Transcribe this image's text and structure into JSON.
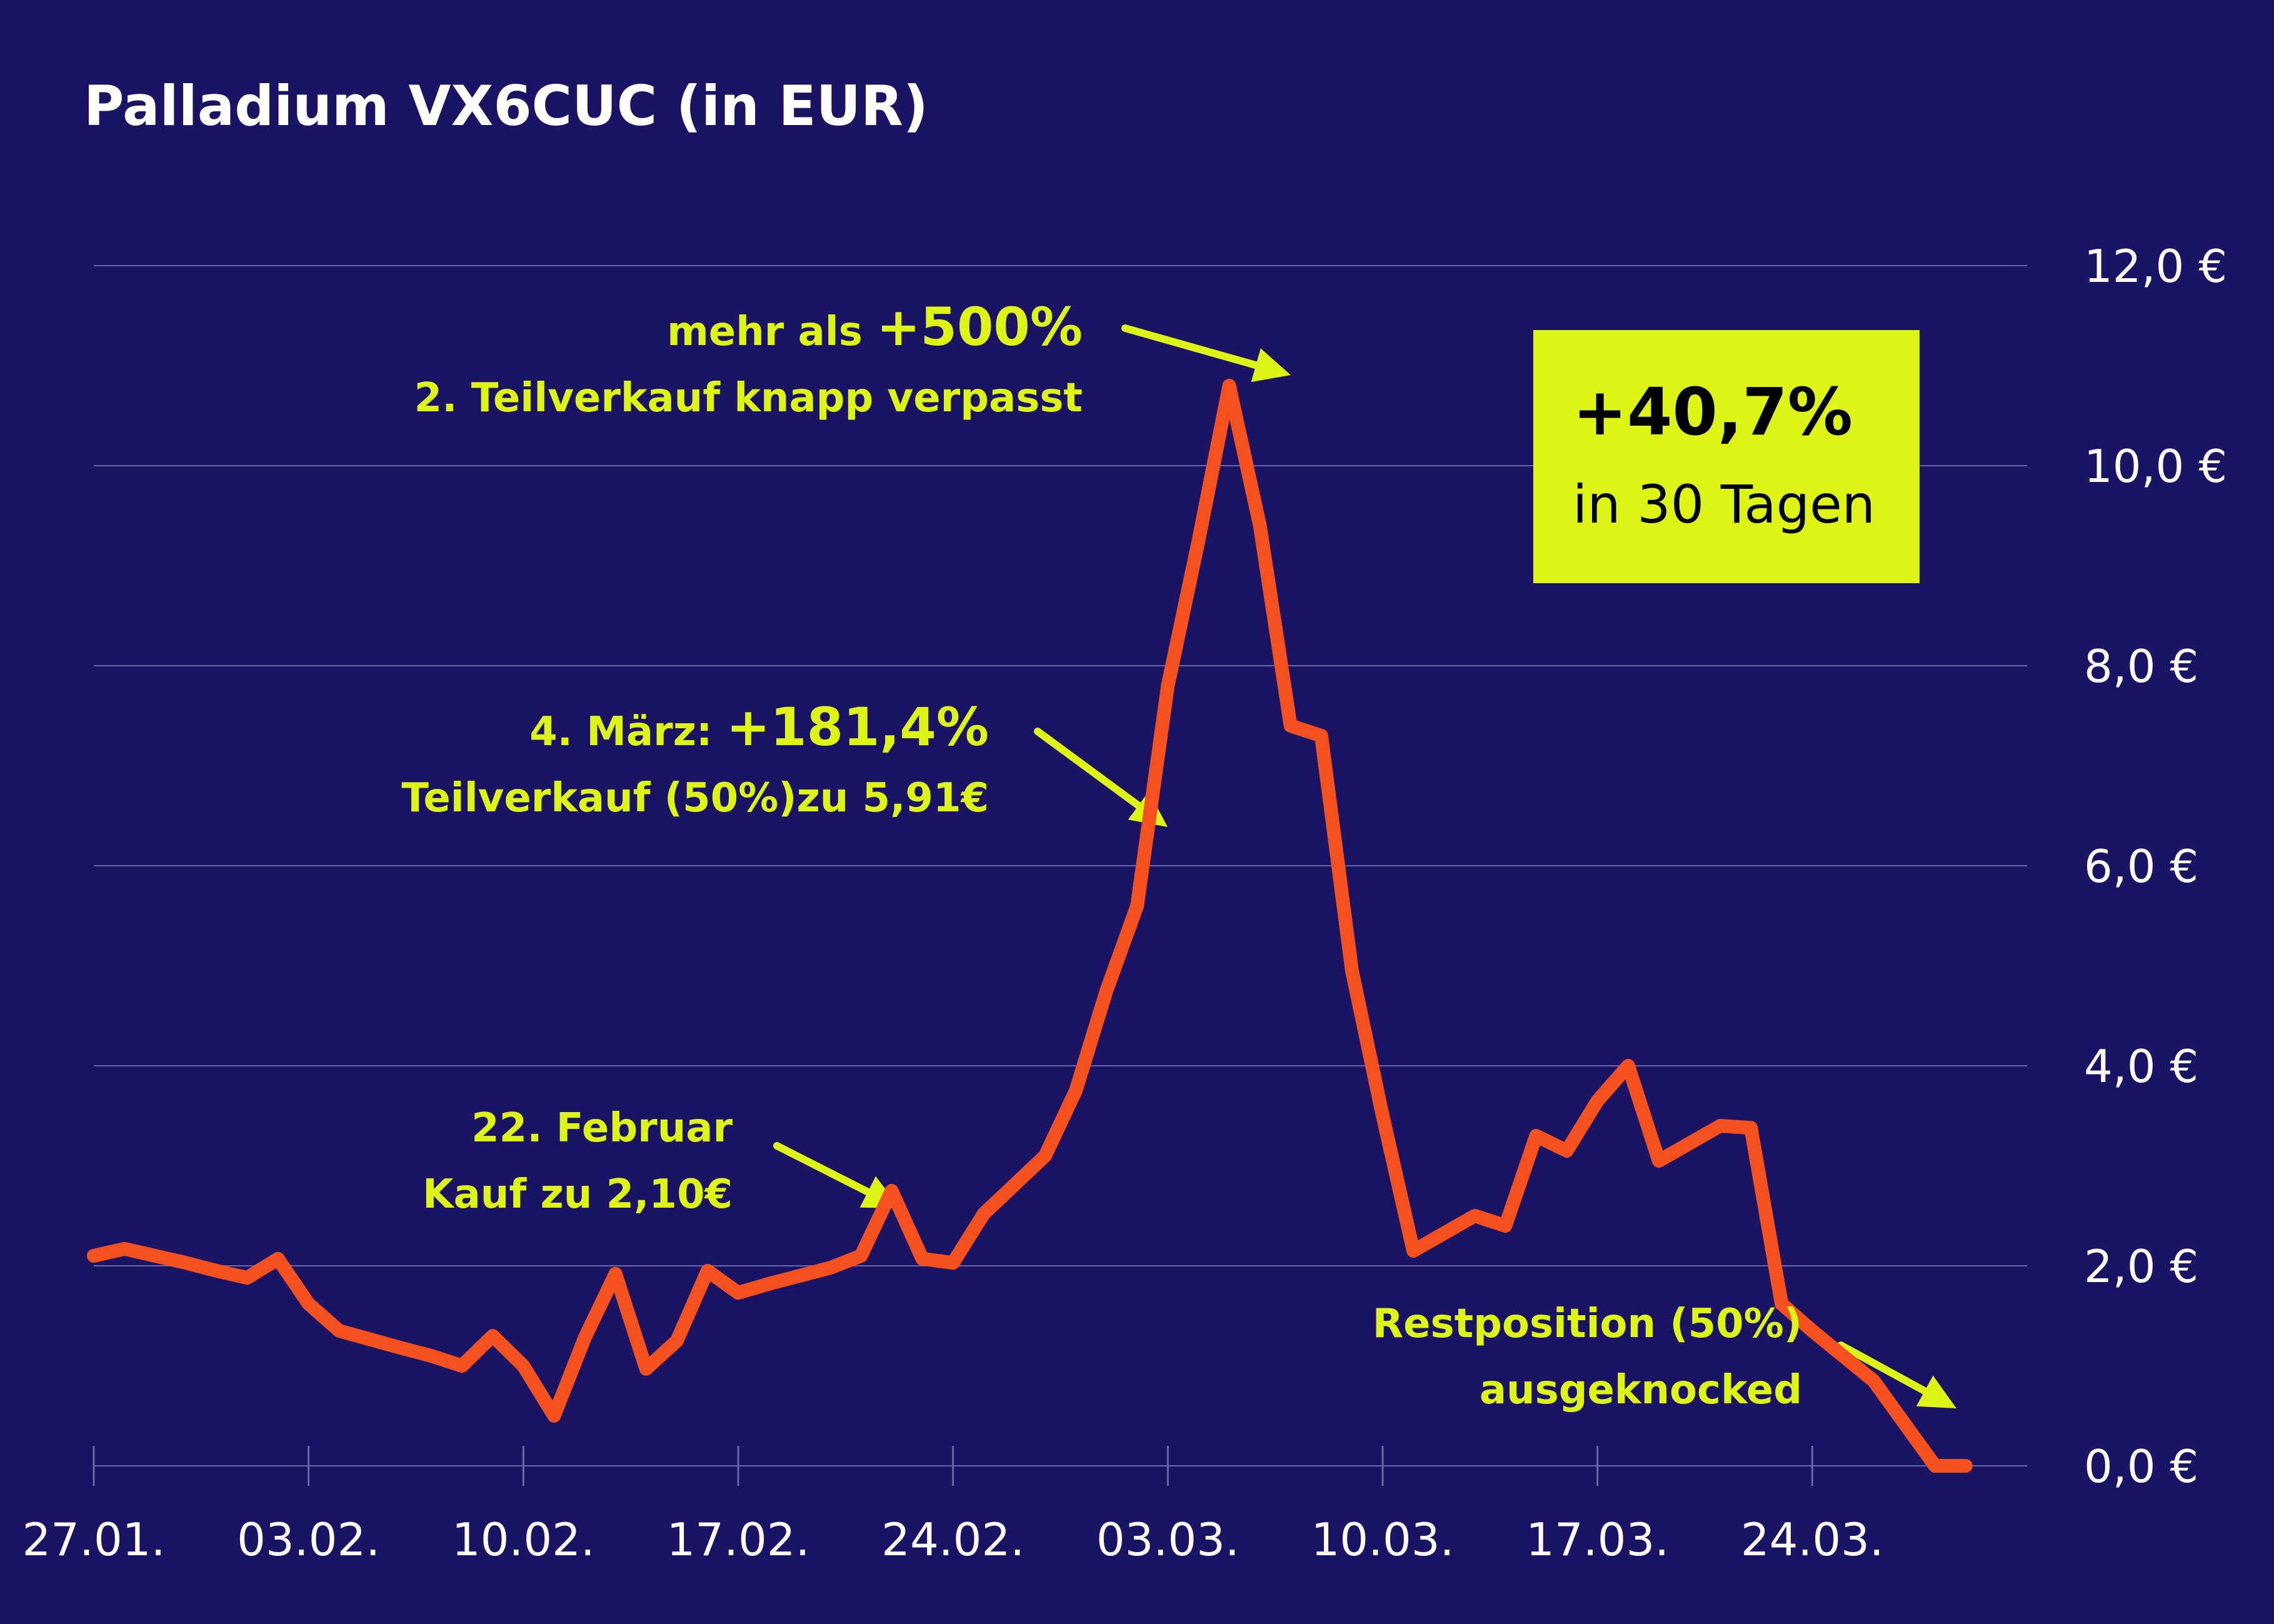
{
  "title": "Palladium VX6CUC (in EUR)",
  "colors": {
    "background": "#1b1464",
    "line": "#f4511e",
    "accent": "#dcf516",
    "grid": "#6a66a8",
    "text": "#ffffff"
  },
  "kpi": {
    "value": "+40,7%",
    "label": "in 30 Tagen"
  },
  "annotations": [
    {
      "id": "peak",
      "line1_prefix": "mehr als ",
      "line1_big": "+500%",
      "line2": "2. Teilverkauf knapp verpasst"
    },
    {
      "id": "march4",
      "line1_prefix": "4. März: ",
      "line1_big": "+181,4%",
      "line2": "Teilverkauf (50%)zu 5,91€"
    },
    {
      "id": "feb22",
      "line1_prefix": "22. Februar",
      "line1_big": "",
      "line2": "Kauf zu 2,10€"
    },
    {
      "id": "rest",
      "line1_prefix": "Restposition (50%)",
      "line1_big": "",
      "line2": "ausgeknocked"
    }
  ],
  "chart_data": {
    "type": "line",
    "title": "Palladium VX6CUC (in EUR)",
    "xlabel": "",
    "ylabel": "",
    "ylim": [
      0,
      12
    ],
    "yticks": [
      0,
      2,
      4,
      6,
      8,
      10,
      12
    ],
    "ytick_labels": [
      "0,0 €",
      "2,0 €",
      "4,0 €",
      "6,0 €",
      "8,0 €",
      "10,0 €",
      "12,0 €"
    ],
    "xlim": [
      "2023-01-27",
      "2023-03-31"
    ],
    "xticks": [
      "2023-01-27",
      "2023-02-03",
      "2023-02-10",
      "2023-02-17",
      "2023-02-24",
      "2023-03-03",
      "2023-03-10",
      "2023-03-17",
      "2023-03-24"
    ],
    "xtick_labels": [
      "27.01.",
      "03.02.",
      "10.02.",
      "17.02.",
      "24.02.",
      "03.03.",
      "10.03.",
      "17.03.",
      "24.03."
    ],
    "grid": true,
    "legend": "none",
    "series": [
      {
        "x": [
          "2023-01-27",
          "2023-01-28",
          "2023-01-29",
          "2023-01-30",
          "2023-01-31",
          "2023-02-01",
          "2023-02-02",
          "2023-02-03",
          "2023-02-04",
          "2023-02-06",
          "2023-02-07",
          "2023-02-08",
          "2023-02-09",
          "2023-02-10",
          "2023-02-11",
          "2023-02-12",
          "2023-02-13",
          "2023-02-14",
          "2023-02-15",
          "2023-02-16",
          "2023-02-17",
          "2023-02-18",
          "2023-02-20",
          "2023-02-21",
          "2023-02-22",
          "2023-02-23",
          "2023-02-24",
          "2023-02-25",
          "2023-02-27",
          "2023-02-28",
          "2023-03-01",
          "2023-03-02",
          "2023-03-03",
          "2023-03-04",
          "2023-03-05",
          "2023-03-06",
          "2023-03-07",
          "2023-03-08",
          "2023-03-09",
          "2023-03-10",
          "2023-03-11",
          "2023-03-13",
          "2023-03-14",
          "2023-03-15",
          "2023-03-16",
          "2023-03-17",
          "2023-03-18",
          "2023-03-19",
          "2023-03-21",
          "2023-03-22",
          "2023-03-23",
          "2023-03-24",
          "2023-03-25",
          "2023-03-26",
          "2023-03-28",
          "2023-03-29"
        ],
        "values": [
          2.1,
          2.17,
          2.1,
          2.03,
          1.95,
          1.88,
          2.07,
          1.62,
          1.35,
          1.18,
          1.1,
          1.0,
          1.3,
          1.0,
          0.5,
          1.28,
          1.92,
          0.97,
          1.25,
          1.95,
          1.73,
          1.82,
          1.98,
          2.1,
          2.75,
          2.07,
          2.03,
          2.52,
          3.1,
          3.75,
          4.75,
          5.6,
          7.8,
          9.25,
          10.8,
          9.4,
          7.4,
          7.3,
          4.95,
          3.5,
          2.15,
          2.5,
          2.4,
          3.3,
          3.15,
          3.65,
          4.0,
          3.05,
          3.4,
          3.38,
          1.62,
          1.35,
          1.1,
          0.85,
          0.0,
          0.0
        ]
      }
    ]
  }
}
